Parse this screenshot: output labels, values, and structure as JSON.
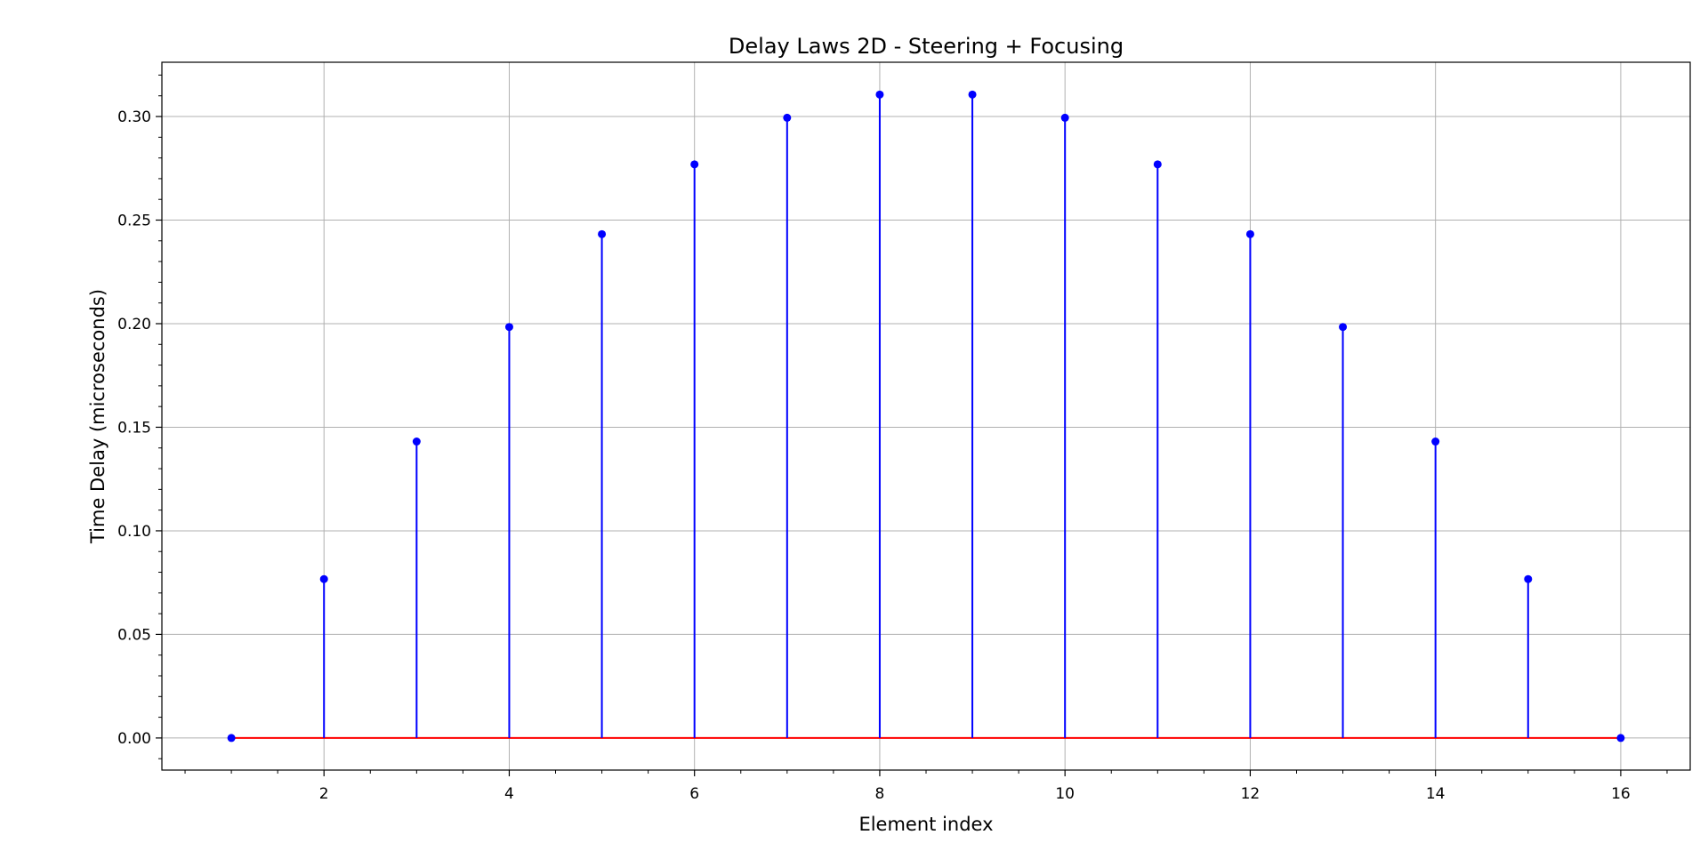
{
  "chart_data": {
    "type": "stem",
    "title": "Delay Laws 2D - Steering + Focusing",
    "xlabel": "Element index",
    "ylabel": "Time Delay (microseconds)",
    "x": [
      1,
      2,
      3,
      4,
      5,
      6,
      7,
      8,
      9,
      10,
      11,
      12,
      13,
      14,
      15,
      16
    ],
    "values": [
      0.0,
      0.0767,
      0.1431,
      0.1984,
      0.2432,
      0.2769,
      0.2994,
      0.3106,
      0.3106,
      0.2994,
      0.2769,
      0.2432,
      0.1984,
      0.1431,
      0.0767,
      0.0
    ],
    "xlim": [
      0.25,
      16.75
    ],
    "ylim": [
      -0.0155,
      0.3262
    ],
    "xticks": [
      2,
      4,
      6,
      8,
      10,
      12,
      14,
      16
    ],
    "yticks": [
      0.0,
      0.05,
      0.1,
      0.15,
      0.2,
      0.25,
      0.3
    ],
    "xtick_labels": [
      "2",
      "4",
      "6",
      "8",
      "10",
      "12",
      "14",
      "16"
    ],
    "ytick_labels": [
      "0.00",
      "0.05",
      "0.10",
      "0.15",
      "0.20",
      "0.25",
      "0.30"
    ],
    "grid": true,
    "colors": {
      "stem": "#0000ff",
      "marker": "#0000ff",
      "baseline": "#ff0000",
      "grid": "#b0b0b0"
    }
  }
}
